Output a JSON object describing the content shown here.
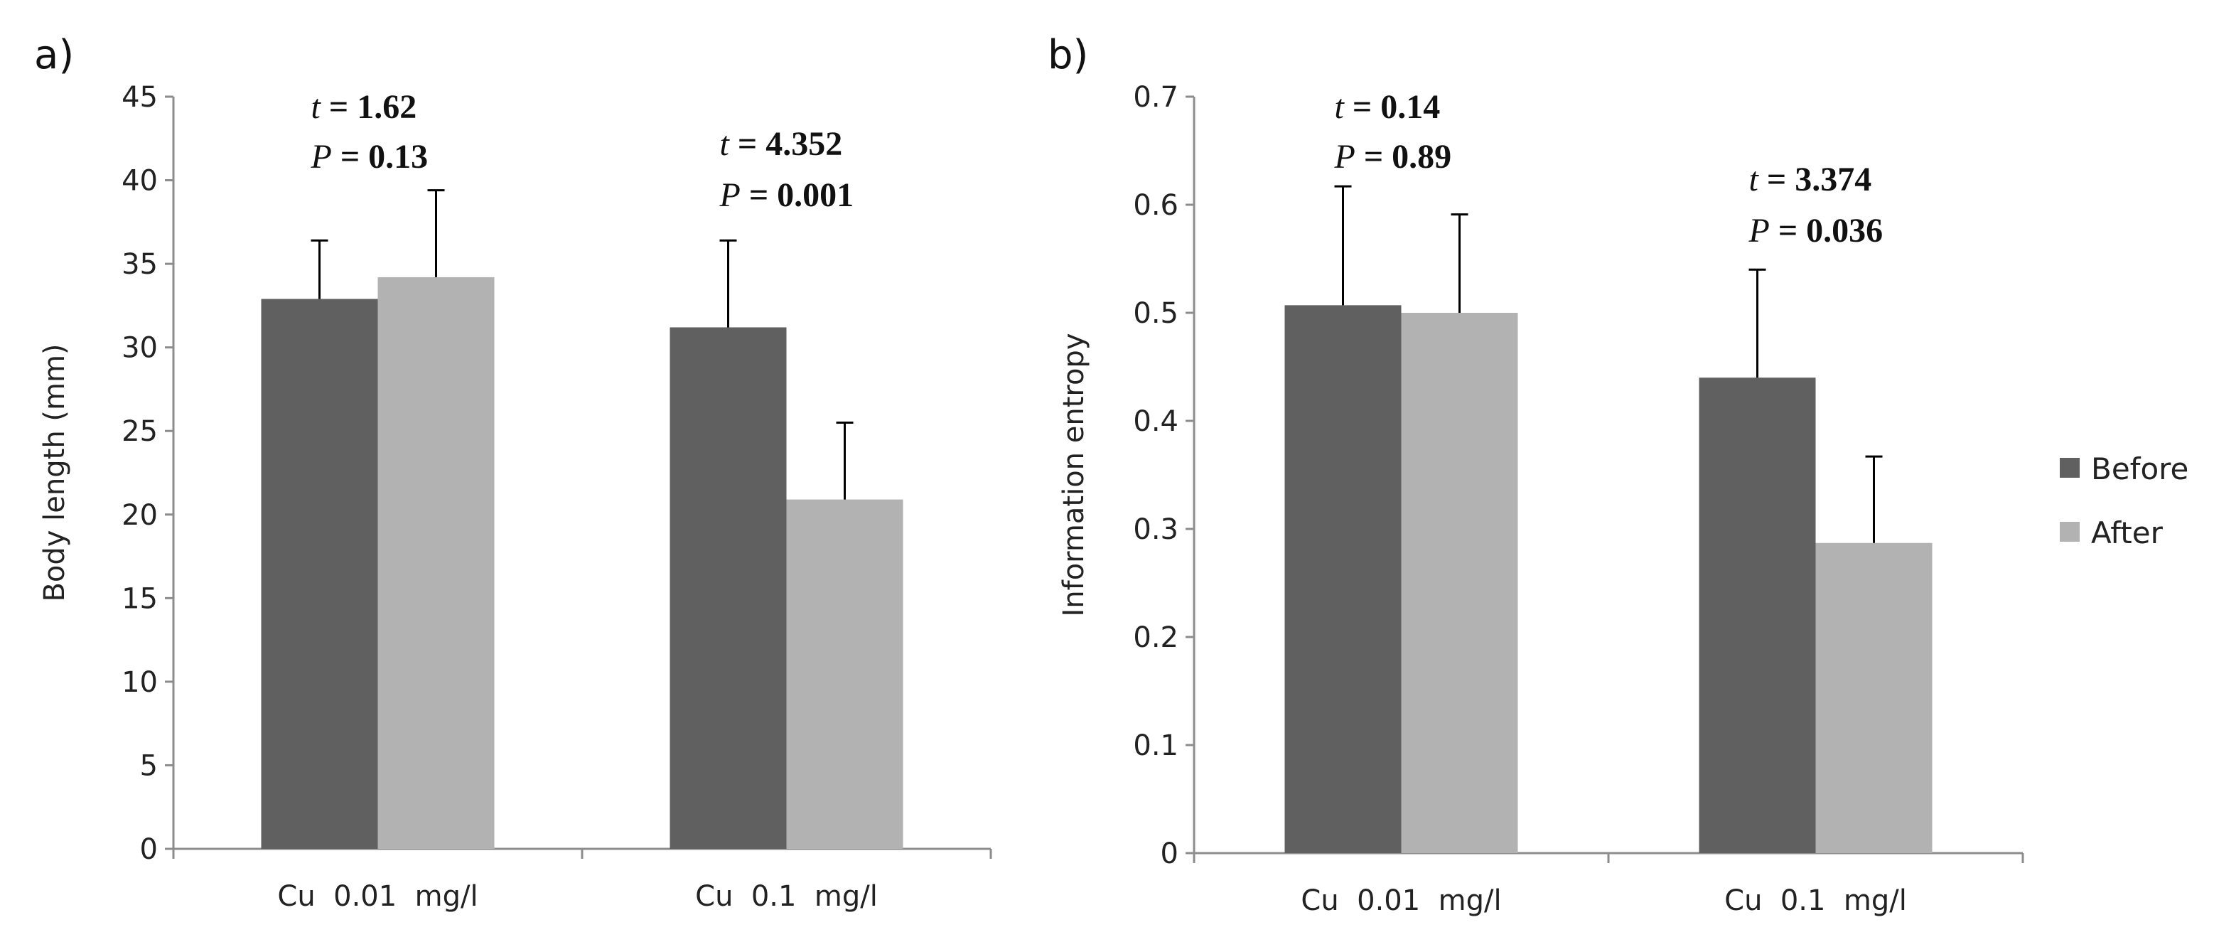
{
  "chart_data": [
    {
      "type": "bar",
      "panel_label": "a)",
      "ylabel": "Body length (mm)",
      "ylim": [
        0,
        45
      ],
      "yticks": [
        "0",
        "5",
        "10",
        "15",
        "20",
        "25",
        "30",
        "35",
        "40",
        "45"
      ],
      "categories": [
        "Cu  0.01  mg/l",
        "Cu  0.1  mg/l"
      ],
      "series": [
        {
          "name": "Before",
          "values": [
            32.9,
            31.2
          ],
          "errors": [
            3.5,
            5.2
          ]
        },
        {
          "name": "After",
          "values": [
            34.2,
            20.9
          ],
          "errors": [
            5.2,
            4.6
          ]
        }
      ],
      "annotations": [
        {
          "t_label": "t",
          "t_value": " = 1.62",
          "p_label": "P",
          "p_value": " = 0.13"
        },
        {
          "t_label": "t",
          "t_value": " = 4.352",
          "p_label": "P",
          "p_value": " = 0.001"
        }
      ]
    },
    {
      "type": "bar",
      "panel_label": "b)",
      "ylabel": "Information  entropy",
      "ylim": [
        0,
        0.7
      ],
      "yticks": [
        "0",
        "0.1",
        "0.2",
        "0.3",
        "0.4",
        "0.5",
        "0.6",
        "0.7"
      ],
      "categories": [
        "Cu  0.01  mg/l",
        "Cu  0.1  mg/l"
      ],
      "series": [
        {
          "name": "Before",
          "values": [
            0.507,
            0.44
          ],
          "errors": [
            0.11,
            0.1
          ]
        },
        {
          "name": "After",
          "values": [
            0.5,
            0.287
          ],
          "errors": [
            0.091,
            0.08
          ]
        }
      ],
      "annotations": [
        {
          "t_label": "t",
          "t_value": " = 0.14",
          "p_label": "P",
          "p_value": " = 0.89"
        },
        {
          "t_label": "t",
          "t_value": " = 3.374",
          "p_label": "P",
          "p_value": " = 0.036"
        }
      ]
    }
  ],
  "legend": {
    "position": "right",
    "items": [
      {
        "name": "Before",
        "color": "#606060"
      },
      {
        "name": "After",
        "color": "#b2b2b2"
      }
    ]
  }
}
